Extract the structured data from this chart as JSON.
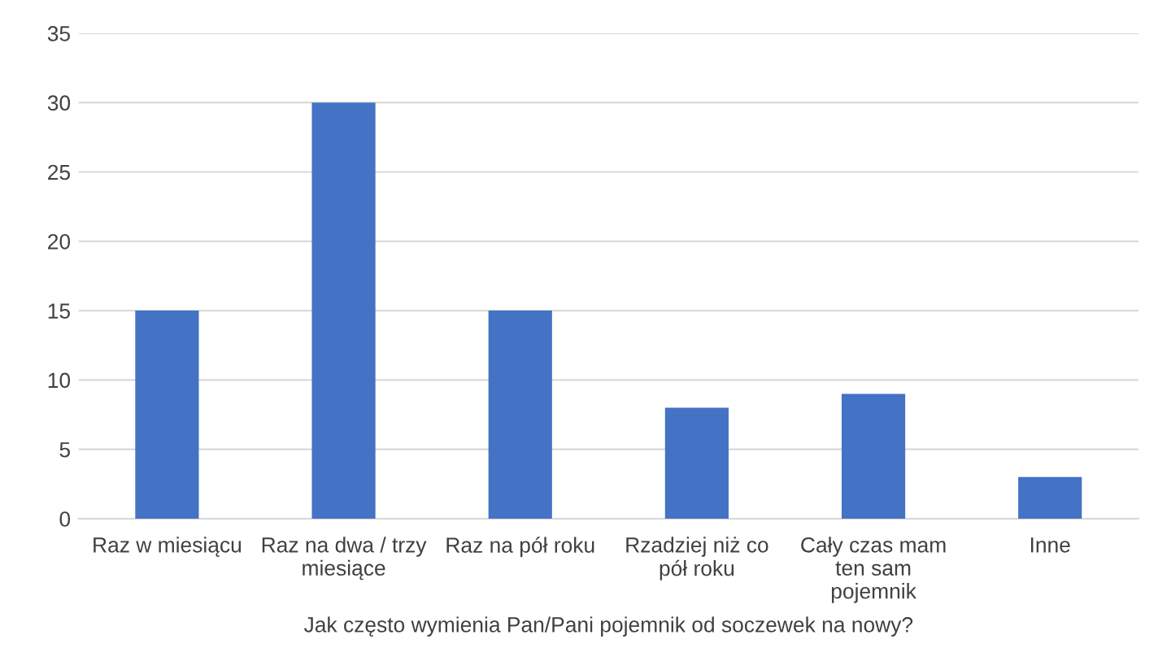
{
  "chart_data": {
    "type": "bar",
    "xlabel": "Jak często wymienia Pan/Pani pojemnik od soczewek na nowy?",
    "categories": [
      "Raz w miesiącu",
      "Raz na dwa / trzy\nmiesiące",
      "Raz na pół roku",
      "Rzadziej niż co\npół roku",
      "Cały czas mam\nten sam\npojemnik",
      "Inne"
    ],
    "values": [
      15,
      30,
      15,
      8,
      9,
      3
    ],
    "color": "#4472c4",
    "ylim": [
      0,
      35
    ],
    "yticks": [
      0,
      5,
      10,
      15,
      20,
      25,
      30,
      35
    ],
    "grid": "y"
  }
}
